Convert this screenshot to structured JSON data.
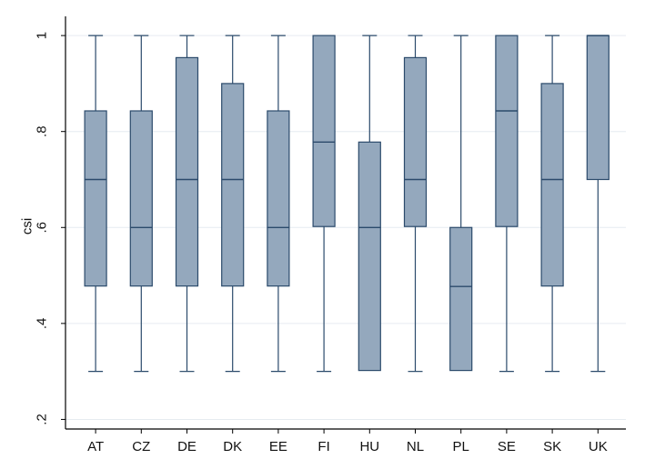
{
  "chart_data": {
    "type": "box",
    "title": "",
    "xlabel": "",
    "ylabel": "csi",
    "ylim": [
      0.18,
      1.04
    ],
    "yticks": [
      0.2,
      0.4,
      0.6,
      0.8,
      1.0
    ],
    "ytick_labels": [
      ".2",
      ".4",
      ".6",
      ".8",
      "1"
    ],
    "grid": true,
    "categories": [
      "AT",
      "CZ",
      "DE",
      "DK",
      "EE",
      "FI",
      "HU",
      "NL",
      "PL",
      "SE",
      "SK",
      "UK"
    ],
    "boxes": [
      {
        "category": "AT",
        "whisker_low": 0.3,
        "q1": 0.478,
        "median": 0.7,
        "q3": 0.843,
        "whisker_high": 1.0
      },
      {
        "category": "CZ",
        "whisker_low": 0.3,
        "q1": 0.478,
        "median": 0.6,
        "q3": 0.843,
        "whisker_high": 1.0
      },
      {
        "category": "DE",
        "whisker_low": 0.3,
        "q1": 0.478,
        "median": 0.7,
        "q3": 0.954,
        "whisker_high": 1.0
      },
      {
        "category": "DK",
        "whisker_low": 0.3,
        "q1": 0.478,
        "median": 0.7,
        "q3": 0.9,
        "whisker_high": 1.0
      },
      {
        "category": "EE",
        "whisker_low": 0.3,
        "q1": 0.478,
        "median": 0.6,
        "q3": 0.843,
        "whisker_high": 1.0
      },
      {
        "category": "FI",
        "whisker_low": 0.3,
        "q1": 0.602,
        "median": 0.778,
        "q3": 1.0,
        "whisker_high": 1.0
      },
      {
        "category": "HU",
        "whisker_low": 0.302,
        "q1": 0.302,
        "median": 0.6,
        "q3": 0.778,
        "whisker_high": 1.0
      },
      {
        "category": "NL",
        "whisker_low": 0.3,
        "q1": 0.602,
        "median": 0.7,
        "q3": 0.954,
        "whisker_high": 1.0
      },
      {
        "category": "PL",
        "whisker_low": 0.302,
        "q1": 0.302,
        "median": 0.477,
        "q3": 0.6,
        "whisker_high": 1.0
      },
      {
        "category": "SE",
        "whisker_low": 0.3,
        "q1": 0.602,
        "median": 0.843,
        "q3": 1.0,
        "whisker_high": 1.0
      },
      {
        "category": "SK",
        "whisker_low": 0.3,
        "q1": 0.478,
        "median": 0.7,
        "q3": 0.9,
        "whisker_high": 1.0
      },
      {
        "category": "UK",
        "whisker_low": 0.3,
        "q1": 0.7,
        "median": 1.0,
        "q3": 1.0,
        "whisker_high": 1.0
      }
    ],
    "colors": {
      "box_fill": "#94a8bd",
      "box_stroke": "#2b4a6b",
      "whisker": "#2b4a6b",
      "grid": "#e6ebf0",
      "axis": "#000000"
    }
  }
}
